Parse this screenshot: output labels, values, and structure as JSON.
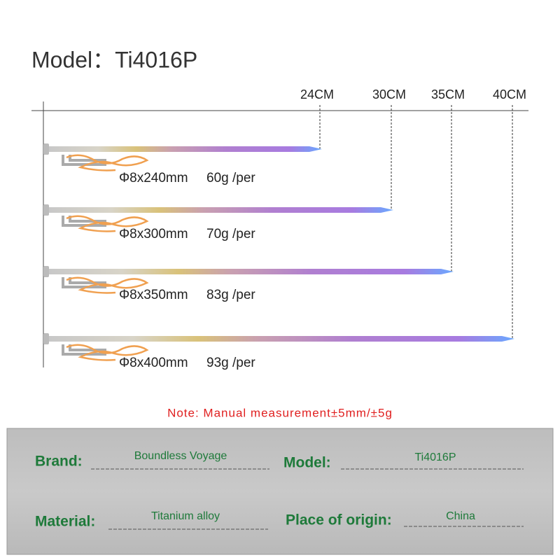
{
  "title": "Model：Ti4016P",
  "rulers": [
    "24CM",
    "30CM",
    "35CM",
    "40CM"
  ],
  "stakes": [
    {
      "size": "Φ8x240mm",
      "weight": "60g /per"
    },
    {
      "size": "Φ8x300mm",
      "weight": "70g /per"
    },
    {
      "size": "Φ8x350mm",
      "weight": "83g /per"
    },
    {
      "size": "Φ8x400mm",
      "weight": "93g /per"
    }
  ],
  "note": "Note: Manual measurement±5mm/±5g",
  "specs": [
    {
      "label": "Brand:",
      "value": "Boundless Voyage"
    },
    {
      "label": "Model:",
      "value": "Ti4016P"
    },
    {
      "label": "Material:",
      "value": "Titanium alloy"
    },
    {
      "label": "Place of origin:",
      "value": "China"
    }
  ]
}
